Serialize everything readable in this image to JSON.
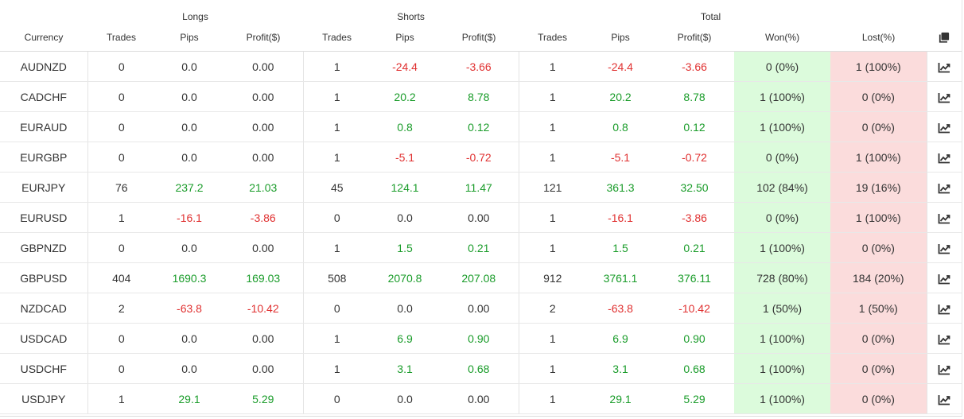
{
  "headers": {
    "groups": {
      "longs": "Longs",
      "shorts": "Shorts",
      "total": "Total"
    },
    "columns": {
      "currency": "Currency",
      "longs_trades": "Trades",
      "longs_pips": "Pips",
      "longs_profit": "Profit($)",
      "shorts_trades": "Trades",
      "shorts_pips": "Pips",
      "shorts_profit": "Profit($)",
      "total_trades": "Trades",
      "total_pips": "Pips",
      "total_profit": "Profit($)",
      "won": "Won(%)",
      "lost": "Lost(%)"
    },
    "copy_icon": "copy-icon"
  },
  "colors": {
    "positive": "#1a9c2a",
    "negative": "#e03030",
    "won_bg": "#dcfbdc",
    "lost_bg": "#fbdcdc"
  },
  "rows": [
    {
      "currency": "AUDNZD",
      "longs": {
        "trades": "0",
        "pips": "0.0",
        "profit": "0.00"
      },
      "shorts": {
        "trades": "1",
        "pips": "-24.4",
        "profit": "-3.66"
      },
      "total": {
        "trades": "1",
        "pips": "-24.4",
        "profit": "-3.66"
      },
      "won": "0 (0%)",
      "lost": "1 (100%)",
      "chart_icon": "chart-line-icon"
    },
    {
      "currency": "CADCHF",
      "longs": {
        "trades": "0",
        "pips": "0.0",
        "profit": "0.00"
      },
      "shorts": {
        "trades": "1",
        "pips": "20.2",
        "profit": "8.78"
      },
      "total": {
        "trades": "1",
        "pips": "20.2",
        "profit": "8.78"
      },
      "won": "1 (100%)",
      "lost": "0 (0%)",
      "chart_icon": "chart-line-icon"
    },
    {
      "currency": "EURAUD",
      "longs": {
        "trades": "0",
        "pips": "0.0",
        "profit": "0.00"
      },
      "shorts": {
        "trades": "1",
        "pips": "0.8",
        "profit": "0.12"
      },
      "total": {
        "trades": "1",
        "pips": "0.8",
        "profit": "0.12"
      },
      "won": "1 (100%)",
      "lost": "0 (0%)",
      "chart_icon": "chart-line-icon"
    },
    {
      "currency": "EURGBP",
      "longs": {
        "trades": "0",
        "pips": "0.0",
        "profit": "0.00"
      },
      "shorts": {
        "trades": "1",
        "pips": "-5.1",
        "profit": "-0.72"
      },
      "total": {
        "trades": "1",
        "pips": "-5.1",
        "profit": "-0.72"
      },
      "won": "0 (0%)",
      "lost": "1 (100%)",
      "chart_icon": "chart-line-icon"
    },
    {
      "currency": "EURJPY",
      "longs": {
        "trades": "76",
        "pips": "237.2",
        "profit": "21.03"
      },
      "shorts": {
        "trades": "45",
        "pips": "124.1",
        "profit": "11.47"
      },
      "total": {
        "trades": "121",
        "pips": "361.3",
        "profit": "32.50"
      },
      "won": "102 (84%)",
      "lost": "19 (16%)",
      "chart_icon": "chart-line-icon"
    },
    {
      "currency": "EURUSD",
      "longs": {
        "trades": "1",
        "pips": "-16.1",
        "profit": "-3.86"
      },
      "shorts": {
        "trades": "0",
        "pips": "0.0",
        "profit": "0.00"
      },
      "total": {
        "trades": "1",
        "pips": "-16.1",
        "profit": "-3.86"
      },
      "won": "0 (0%)",
      "lost": "1 (100%)",
      "chart_icon": "chart-line-icon"
    },
    {
      "currency": "GBPNZD",
      "longs": {
        "trades": "0",
        "pips": "0.0",
        "profit": "0.00"
      },
      "shorts": {
        "trades": "1",
        "pips": "1.5",
        "profit": "0.21"
      },
      "total": {
        "trades": "1",
        "pips": "1.5",
        "profit": "0.21"
      },
      "won": "1 (100%)",
      "lost": "0 (0%)",
      "chart_icon": "chart-line-icon"
    },
    {
      "currency": "GBPUSD",
      "longs": {
        "trades": "404",
        "pips": "1690.3",
        "profit": "169.03"
      },
      "shorts": {
        "trades": "508",
        "pips": "2070.8",
        "profit": "207.08"
      },
      "total": {
        "trades": "912",
        "pips": "3761.1",
        "profit": "376.11"
      },
      "won": "728 (80%)",
      "lost": "184 (20%)",
      "chart_icon": "chart-line-icon"
    },
    {
      "currency": "NZDCAD",
      "longs": {
        "trades": "2",
        "pips": "-63.8",
        "profit": "-10.42"
      },
      "shorts": {
        "trades": "0",
        "pips": "0.0",
        "profit": "0.00"
      },
      "total": {
        "trades": "2",
        "pips": "-63.8",
        "profit": "-10.42"
      },
      "won": "1 (50%)",
      "lost": "1 (50%)",
      "chart_icon": "chart-line-icon"
    },
    {
      "currency": "USDCAD",
      "longs": {
        "trades": "0",
        "pips": "0.0",
        "profit": "0.00"
      },
      "shorts": {
        "trades": "1",
        "pips": "6.9",
        "profit": "0.90"
      },
      "total": {
        "trades": "1",
        "pips": "6.9",
        "profit": "0.90"
      },
      "won": "1 (100%)",
      "lost": "0 (0%)",
      "chart_icon": "chart-line-icon"
    },
    {
      "currency": "USDCHF",
      "longs": {
        "trades": "0",
        "pips": "0.0",
        "profit": "0.00"
      },
      "shorts": {
        "trades": "1",
        "pips": "3.1",
        "profit": "0.68"
      },
      "total": {
        "trades": "1",
        "pips": "3.1",
        "profit": "0.68"
      },
      "won": "1 (100%)",
      "lost": "0 (0%)",
      "chart_icon": "chart-line-icon"
    },
    {
      "currency": "USDJPY",
      "longs": {
        "trades": "1",
        "pips": "29.1",
        "profit": "5.29"
      },
      "shorts": {
        "trades": "0",
        "pips": "0.0",
        "profit": "0.00"
      },
      "total": {
        "trades": "1",
        "pips": "29.1",
        "profit": "5.29"
      },
      "won": "1 (100%)",
      "lost": "0 (0%)",
      "chart_icon": "chart-line-icon"
    }
  ]
}
